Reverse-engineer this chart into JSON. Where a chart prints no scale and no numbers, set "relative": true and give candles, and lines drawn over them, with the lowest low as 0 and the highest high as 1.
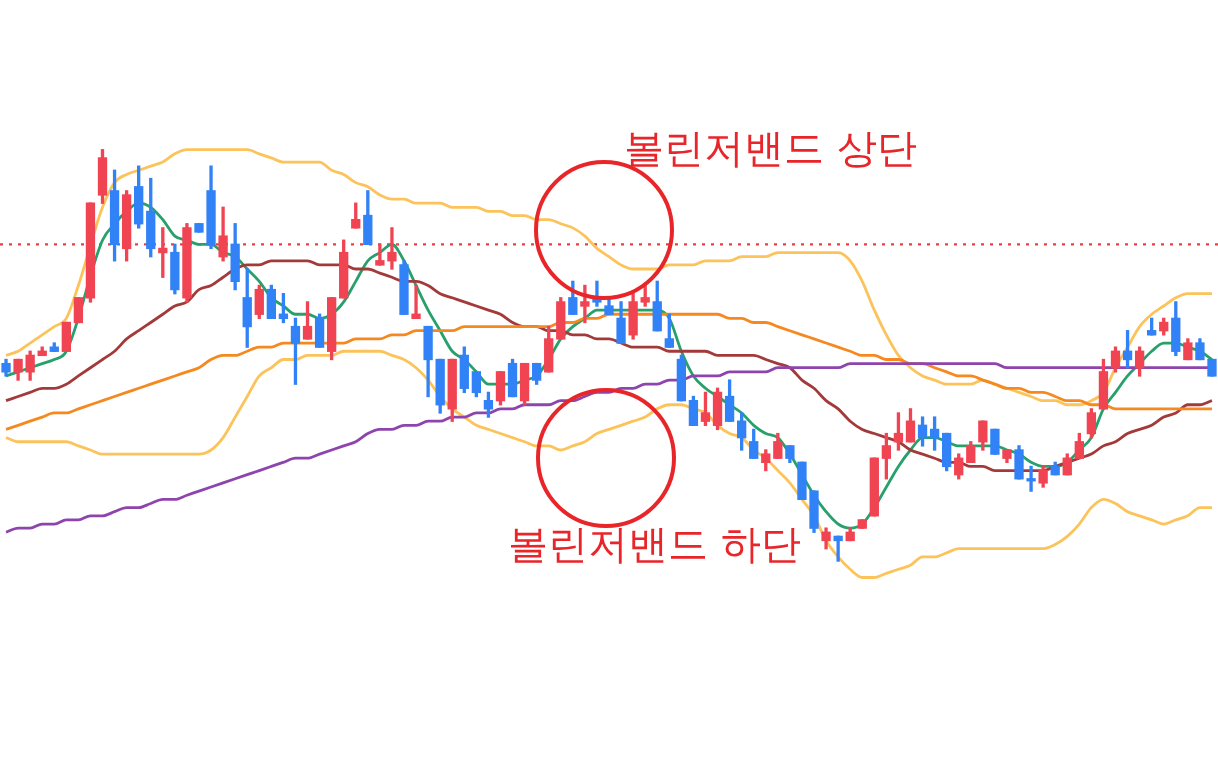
{
  "chart_data": {
    "type": "candlestick",
    "relative": true,
    "categories": [
      null,
      null,
      null,
      null,
      null,
      null,
      null,
      null,
      null,
      null,
      null,
      null,
      null,
      null,
      null,
      null,
      null,
      null,
      null,
      null,
      null,
      null,
      null,
      null,
      null,
      null,
      null,
      null,
      null,
      null,
      null,
      null,
      null,
      null,
      null,
      null,
      null,
      null,
      null,
      null,
      null,
      null,
      null,
      null,
      null,
      null,
      null,
      null,
      null,
      null,
      null,
      null,
      null,
      null,
      null,
      null,
      null,
      null,
      null,
      null,
      null,
      null,
      null,
      null,
      null,
      null,
      null,
      null,
      null,
      null,
      null,
      null,
      null,
      null,
      null,
      null,
      null,
      null,
      null,
      null,
      null,
      null,
      null,
      null,
      null,
      null,
      null,
      null,
      null,
      null,
      null,
      null,
      null,
      null,
      null,
      null,
      null,
      null,
      null,
      null,
      null
    ],
    "ohlc": [
      [
        0.48,
        0.49,
        0.45,
        0.46
      ],
      [
        0.46,
        0.49,
        0.44,
        0.49
      ],
      [
        0.46,
        0.51,
        0.44,
        0.5
      ],
      [
        0.5,
        0.52,
        0.5,
        0.51
      ],
      [
        0.52,
        0.53,
        0.51,
        0.51
      ],
      [
        0.51,
        0.58,
        0.51,
        0.58
      ],
      [
        0.58,
        0.64,
        0.58,
        0.64
      ],
      [
        0.64,
        0.87,
        0.63,
        0.87
      ],
      [
        0.89,
        1,
        0.87,
        0.98
      ],
      [
        0.9,
        0.95,
        0.73,
        0.77
      ],
      [
        0.76,
        0.9,
        0.73,
        0.89
      ],
      [
        0.91,
        0.96,
        0.81,
        0.82
      ],
      [
        0.85,
        0.93,
        0.74,
        0.76
      ],
      [
        0.75,
        0.81,
        0.69,
        0.76
      ],
      [
        0.75,
        0.77,
        0.65,
        0.66
      ],
      [
        0.64,
        0.82,
        0.63,
        0.81
      ],
      [
        0.82,
        0.82,
        0.8,
        0.8
      ],
      [
        0.9,
        0.96,
        0.76,
        0.77
      ],
      [
        0.74,
        0.86,
        0.73,
        0.79
      ],
      [
        0.77,
        0.82,
        0.66,
        0.68
      ],
      [
        0.64,
        0.71,
        0.52,
        0.57
      ],
      [
        0.6,
        0.67,
        0.59,
        0.66
      ],
      [
        0.66,
        0.67,
        0.59,
        0.59
      ],
      [
        0.6,
        0.65,
        0.58,
        0.59
      ],
      [
        0.57,
        0.59,
        0.43,
        0.53
      ],
      [
        0.54,
        0.63,
        0.54,
        0.57
      ],
      [
        0.59,
        0.6,
        0.52,
        0.52
      ],
      [
        0.51,
        0.64,
        0.49,
        0.64
      ],
      [
        0.64,
        0.78,
        0.64,
        0.75
      ],
      [
        0.81,
        0.87,
        0.81,
        0.83
      ],
      [
        0.84,
        0.9,
        0.77,
        0.77
      ],
      [
        0.72,
        0.77,
        0.72,
        0.73
      ],
      [
        0.73,
        0.81,
        0.71,
        0.75
      ],
      [
        0.72,
        0.73,
        0.6,
        0.6
      ],
      [
        0.59,
        0.67,
        0.59,
        0.6
      ],
      [
        0.57,
        0.57,
        0.4,
        0.49
      ],
      [
        0.49,
        0.49,
        0.36,
        0.38
      ],
      [
        0.37,
        0.49,
        0.34,
        0.49
      ],
      [
        0.5,
        0.52,
        0.41,
        0.42
      ],
      [
        0.46,
        0.46,
        0.4,
        0.41
      ],
      [
        0.39,
        0.41,
        0.35,
        0.37
      ],
      [
        0.39,
        0.46,
        0.38,
        0.46
      ],
      [
        0.48,
        0.49,
        0.4,
        0.4
      ],
      [
        0.39,
        0.48,
        0.38,
        0.48
      ],
      [
        0.48,
        0.48,
        0.43,
        0.44
      ],
      [
        0.46,
        0.57,
        0.46,
        0.54
      ],
      [
        0.54,
        0.64,
        0.54,
        0.63
      ],
      [
        0.64,
        0.68,
        0.6,
        0.6
      ],
      [
        0.62,
        0.67,
        0.58,
        0.63
      ],
      [
        0.64,
        0.68,
        0.62,
        0.63
      ],
      [
        0.62,
        0.64,
        0.6,
        0.6
      ],
      [
        0.59,
        0.63,
        0.53,
        0.53
      ],
      [
        0.55,
        0.65,
        0.54,
        0.63
      ],
      [
        0.63,
        0.67,
        0.62,
        0.64
      ],
      [
        0.63,
        0.68,
        0.56,
        0.56
      ],
      [
        0.54,
        0.6,
        0.52,
        0.52
      ],
      [
        0.49,
        0.5,
        0.39,
        0.39
      ],
      [
        0.39,
        0.4,
        0.33,
        0.33
      ],
      [
        0.34,
        0.41,
        0.33,
        0.36
      ],
      [
        0.33,
        0.42,
        0.32,
        0.41
      ],
      [
        0.4,
        0.44,
        0.34,
        0.34
      ],
      [
        0.34,
        0.36,
        0.27,
        0.3
      ],
      [
        0.29,
        0.32,
        0.25,
        0.25
      ],
      [
        0.24,
        0.27,
        0.22,
        0.26
      ],
      [
        0.25,
        0.31,
        0.25,
        0.29
      ],
      [
        0.28,
        0.28,
        0.24,
        0.25
      ],
      [
        0.24,
        0.24,
        0.15,
        0.15
      ],
      [
        0.17,
        0.17,
        0.07,
        0.08
      ],
      [
        0.05,
        0.08,
        0.03,
        0.07
      ],
      [
        0.06,
        0.06,
        0,
        0.05
      ],
      [
        0.05,
        0.08,
        0.05,
        0.07
      ],
      [
        0.08,
        0.1,
        0.08,
        0.1
      ],
      [
        0.11,
        0.25,
        0.11,
        0.25
      ],
      [
        0.25,
        0.31,
        0.2,
        0.28
      ],
      [
        0.29,
        0.36,
        0.27,
        0.31
      ],
      [
        0.29,
        0.37,
        0.29,
        0.34
      ],
      [
        0.33,
        0.35,
        0.28,
        0.3
      ],
      [
        0.32,
        0.35,
        0.27,
        0.3
      ],
      [
        0.31,
        0.31,
        0.22,
        0.23
      ],
      [
        0.21,
        0.26,
        0.2,
        0.25
      ],
      [
        0.24,
        0.29,
        0.24,
        0.28
      ],
      [
        0.29,
        0.34,
        0.27,
        0.34
      ],
      [
        0.32,
        0.32,
        0.26,
        0.26
      ],
      [
        0.25,
        0.27,
        0.24,
        0.27
      ],
      [
        0.27,
        0.28,
        0.2,
        0.2
      ],
      [
        0.2,
        0.23,
        0.17,
        0.2
      ],
      [
        0.19,
        0.23,
        0.18,
        0.22
      ],
      [
        0.23,
        0.24,
        0.21,
        0.21
      ],
      [
        0.21,
        0.26,
        0.21,
        0.25
      ],
      [
        0.25,
        0.31,
        0.25,
        0.29
      ],
      [
        0.31,
        0.37,
        0.3,
        0.36
      ],
      [
        0.37,
        0.49,
        0.37,
        0.46
      ],
      [
        0.47,
        0.52,
        0.46,
        0.51
      ],
      [
        0.51,
        0.56,
        0.47,
        0.49
      ],
      [
        0.47,
        0.52,
        0.45,
        0.51
      ],
      [
        0.56,
        0.59,
        0.55,
        0.55
      ],
      [
        0.56,
        0.59,
        0.55,
        0.58
      ],
      [
        0.59,
        0.63,
        0.5,
        0.51
      ],
      [
        0.49,
        0.54,
        0.49,
        0.53
      ],
      [
        0.53,
        0.54,
        0.49,
        0.49
      ],
      [
        0.49,
        0.49,
        0.45,
        0.45
      ]
    ],
    "colors": [
      "#3182f6",
      "#f04452",
      "#f04452",
      "#f04452",
      "#3182f6",
      "#f04452",
      "#f04452",
      "#f04452",
      "#f04452",
      "#3182f6",
      "#f04452",
      "#3182f6",
      "#3182f6",
      "#f04452",
      "#3182f6",
      "#f04452",
      "#3182f6",
      "#3182f6",
      "#f04452",
      "#3182f6",
      "#3182f6",
      "#f04452",
      "#3182f6",
      "#3182f6",
      "#3182f6",
      "#f04452",
      "#3182f6",
      "#f04452",
      "#f04452",
      "#f04452",
      "#3182f6",
      "#f04452",
      "#f04452",
      "#3182f6",
      "#f04452",
      "#3182f6",
      "#3182f6",
      "#f04452",
      "#3182f6",
      "#3182f6",
      "#3182f6",
      "#f04452",
      "#3182f6",
      "#f04452",
      "#3182f6",
      "#f04452",
      "#f04452",
      "#3182f6",
      "#f04452",
      "#3182f6",
      "#3182f6",
      "#3182f6",
      "#f04452",
      "#f04452",
      "#3182f6",
      "#3182f6",
      "#3182f6",
      "#3182f6",
      "#f04452",
      "#f04452",
      "#3182f6",
      "#3182f6",
      "#3182f6",
      "#f04452",
      "#f04452",
      "#3182f6",
      "#3182f6",
      "#3182f6",
      "#f04452",
      "#3182f6",
      "#f04452",
      "#f04452",
      "#f04452",
      "#f04452",
      "#f04452",
      "#f04452",
      "#3182f6",
      "#3182f6",
      "#3182f6",
      "#f04452",
      "#f04452",
      "#f04452",
      "#3182f6",
      "#f04452",
      "#3182f6",
      "#3182f6",
      "#f04452",
      "#3182f6",
      "#f04452",
      "#f04452",
      "#f04452",
      "#f04452",
      "#f04452",
      "#3182f6",
      "#f04452",
      "#3182f6",
      "#f04452",
      "#3182f6",
      "#f04452",
      "#3182f6",
      "#3182f6"
    ],
    "series": [
      {
        "type": "line",
        "color": "#8e44ad",
        "values": [
          0.07,
          0.08,
          0.08,
          0.09,
          0.09,
          0.1,
          0.1,
          0.11,
          0.11,
          0.12,
          0.13,
          0.13,
          0.14,
          0.15,
          0.15,
          0.16,
          0.17,
          0.18,
          0.19,
          0.2,
          0.21,
          0.22,
          0.23,
          0.24,
          0.25,
          0.25,
          0.26,
          0.27,
          0.28,
          0.29,
          0.31,
          0.32,
          0.32,
          0.33,
          0.33,
          0.34,
          0.34,
          0.35,
          0.35,
          0.36,
          0.36,
          0.37,
          0.37,
          0.38,
          0.38,
          0.38,
          0.39,
          0.39,
          0.4,
          0.41,
          0.41,
          0.42,
          0.42,
          0.43,
          0.43,
          0.44,
          0.44,
          0.45,
          0.45,
          0.45,
          0.46,
          0.46,
          0.46,
          0.46,
          0.47,
          0.47,
          0.47,
          0.47,
          0.47,
          0.47,
          0.48,
          0.48,
          0.48,
          0.48,
          0.48,
          0.48,
          0.48,
          0.48,
          0.48,
          0.48,
          0.48,
          0.48,
          0.48,
          0.47,
          0.47,
          0.47,
          0.47,
          0.47,
          0.47,
          0.47,
          0.47,
          0.47,
          0.47,
          0.47,
          0.47,
          0.47,
          0.47,
          0.47,
          0.47,
          0.47,
          0.47
        ]
      },
      {
        "type": "line",
        "color": "#f5891f",
        "values": [
          0.32,
          0.33,
          0.34,
          0.35,
          0.36,
          0.36,
          0.37,
          0.38,
          0.39,
          0.4,
          0.41,
          0.42,
          0.43,
          0.44,
          0.45,
          0.46,
          0.47,
          0.49,
          0.5,
          0.5,
          0.51,
          0.52,
          0.52,
          0.53,
          0.53,
          0.53,
          0.53,
          0.53,
          0.53,
          0.54,
          0.54,
          0.54,
          0.55,
          0.55,
          0.56,
          0.56,
          0.56,
          0.56,
          0.57,
          0.57,
          0.57,
          0.57,
          0.57,
          0.57,
          0.57,
          0.57,
          0.58,
          0.58,
          0.59,
          0.59,
          0.6,
          0.6,
          0.6,
          0.6,
          0.6,
          0.6,
          0.6,
          0.6,
          0.6,
          0.6,
          0.59,
          0.59,
          0.58,
          0.58,
          0.57,
          0.56,
          0.55,
          0.54,
          0.53,
          0.52,
          0.51,
          0.5,
          0.5,
          0.49,
          0.49,
          0.48,
          0.48,
          0.47,
          0.46,
          0.45,
          0.45,
          0.44,
          0.43,
          0.42,
          0.42,
          0.41,
          0.41,
          0.4,
          0.39,
          0.39,
          0.38,
          0.38,
          0.37,
          0.37,
          0.37,
          0.37,
          0.37,
          0.37,
          0.37,
          0.37,
          0.37
        ]
      },
      {
        "type": "line",
        "color": "#a33a3a",
        "values": [
          0.39,
          0.4,
          0.41,
          0.42,
          0.42,
          0.43,
          0.45,
          0.47,
          0.49,
          0.51,
          0.54,
          0.56,
          0.58,
          0.6,
          0.62,
          0.63,
          0.66,
          0.67,
          0.69,
          0.71,
          0.72,
          0.72,
          0.73,
          0.73,
          0.73,
          0.73,
          0.72,
          0.72,
          0.72,
          0.71,
          0.71,
          0.7,
          0.69,
          0.68,
          0.68,
          0.67,
          0.65,
          0.64,
          0.63,
          0.62,
          0.61,
          0.6,
          0.58,
          0.57,
          0.57,
          0.56,
          0.56,
          0.55,
          0.55,
          0.54,
          0.54,
          0.53,
          0.52,
          0.52,
          0.52,
          0.51,
          0.51,
          0.51,
          0.51,
          0.5,
          0.5,
          0.5,
          0.5,
          0.49,
          0.48,
          0.47,
          0.44,
          0.42,
          0.39,
          0.37,
          0.34,
          0.32,
          0.31,
          0.3,
          0.29,
          0.27,
          0.26,
          0.25,
          0.24,
          0.24,
          0.23,
          0.23,
          0.22,
          0.22,
          0.22,
          0.22,
          0.22,
          0.23,
          0.24,
          0.25,
          0.26,
          0.28,
          0.29,
          0.31,
          0.32,
          0.33,
          0.35,
          0.36,
          0.38,
          0.38,
          0.39
        ]
      },
      {
        "type": "line",
        "color": "#fcc35a",
        "values": [
          0.5,
          0.51,
          0.53,
          0.55,
          0.57,
          0.59,
          0.67,
          null,
          0.86,
          0.92,
          0.94,
          0.95,
          0.96,
          0.97,
          0.99,
          1.0,
          1.0,
          1.0,
          1.0,
          1.0,
          1.0,
          0.99,
          0.98,
          0.97,
          0.97,
          0.97,
          0.97,
          0.95,
          0.94,
          0.92,
          0.91,
          0.89,
          0.88,
          0.88,
          0.87,
          0.87,
          0.87,
          0.86,
          0.86,
          0.86,
          0.85,
          0.85,
          0.84,
          0.84,
          0.83,
          0.83,
          0.82,
          0.81,
          0.79,
          0.76,
          0.74,
          0.72,
          0.71,
          0.71,
          0.71,
          0.72,
          0.72,
          0.72,
          0.73,
          0.73,
          0.73,
          0.74,
          0.74,
          0.74,
          0.75,
          0.75,
          0.75,
          0.75,
          0.75,
          0.75,
          0.73,
          0.68,
          0.61,
          0.55,
          0.5,
          0.47,
          0.45,
          0.44,
          0.43,
          0.43,
          0.43,
          0.44,
          0.43,
          0.42,
          0.41,
          0.4,
          0.39,
          0.39,
          0.38,
          0.38,
          0.39,
          0.41,
          0.47,
          0.52,
          0.57,
          0.6,
          0.62,
          0.64,
          0.65,
          0.65,
          0.65
        ]
      },
      {
        "type": "line",
        "color": "#fcc35a",
        "values": [
          0.3,
          0.29,
          0.29,
          0.29,
          0.29,
          0.29,
          0.28,
          0.27,
          0.26,
          0.26,
          0.26,
          0.26,
          0.26,
          0.26,
          0.26,
          0.26,
          0.26,
          0.27,
          0.3,
          0.35,
          0.4,
          0.45,
          0.47,
          0.49,
          0.49,
          0.5,
          0.5,
          0.5,
          0.51,
          0.51,
          0.51,
          0.51,
          0.5,
          0.49,
          0.47,
          0.44,
          0.4,
          0.37,
          0.35,
          0.33,
          0.32,
          0.31,
          0.3,
          0.29,
          0.28,
          0.28,
          0.27,
          0.28,
          0.29,
          0.31,
          0.32,
          0.33,
          0.34,
          0.35,
          0.37,
          0.38,
          0.38,
          0.37,
          0.36,
          0.33,
          0.31,
          0.3,
          0.27,
          0.25,
          0.22,
          0.19,
          0.15,
          0.11,
          0.05,
          0.01,
          -0.02,
          -0.04,
          -0.04,
          -0.03,
          -0.02,
          -0.01,
          0.01,
          0.01,
          0.02,
          0.03,
          0.03,
          0.03,
          0.03,
          0.03,
          0.03,
          0.03,
          0.03,
          0.04,
          0.06,
          0.09,
          0.13,
          0.15,
          0.14,
          0.12,
          0.11,
          0.1,
          0.09,
          0.1,
          0.11,
          0.13,
          0.13
        ]
      },
      {
        "type": "line",
        "color": "#27a06b",
        "values": [
          0.45,
          0.46,
          0.47,
          0.48,
          0.49,
          0.51,
          null,
          null,
          0.78,
          0.82,
          0.85,
          0.87,
          0.86,
          0.83,
          0.79,
          0.78,
          0.77,
          0.77,
          0.75,
          0.74,
          0.71,
          0.68,
          0.64,
          0.62,
          0.6,
          0.6,
          0.59,
          0.6,
          0.63,
          0.68,
          0.73,
          0.75,
          0.77,
          0.73,
          0.67,
          0.61,
          0.56,
          0.51,
          0.49,
          0.46,
          0.43,
          0.43,
          0.43,
          0.44,
          0.45,
          0.49,
          0.54,
          0.57,
          0.59,
          0.61,
          0.61,
          0.61,
          0.61,
          0.61,
          0.61,
          0.59,
          0.51,
          0.45,
          0.42,
          0.4,
          0.38,
          0.36,
          0.33,
          0.31,
          0.3,
          0.26,
          0.21,
          0.16,
          0.12,
          0.09,
          0.08,
          0.09,
          0.13,
          0.18,
          0.23,
          0.27,
          0.3,
          0.3,
          0.29,
          0.28,
          0.28,
          0.28,
          0.28,
          0.27,
          0.26,
          0.24,
          0.23,
          0.23,
          0.24,
          0.27,
          0.3,
          0.37,
          0.41,
          0.45,
          0.48,
          0.51,
          0.53,
          0.53,
          0.52,
          0.51,
          0.49
        ]
      }
    ],
    "ref_lines": [
      {
        "axis": "y",
        "value": 0.77,
        "color": "#e8403f",
        "line_style": "dotted"
      }
    ],
    "annotations": [
      "볼린저밴드 상단",
      "볼린저밴드 하단"
    ]
  }
}
